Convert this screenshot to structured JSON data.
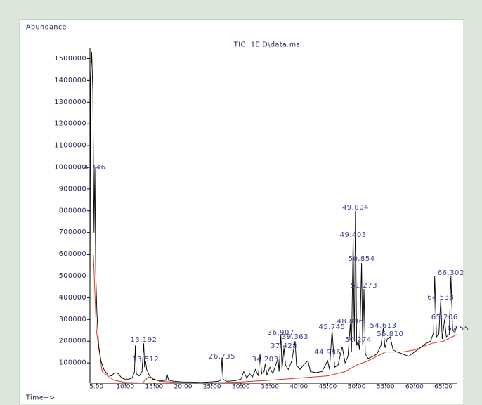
{
  "chart_data": {
    "type": "line",
    "title": "TIC: 1E.D\\data.ms",
    "ylabel": "Abundance",
    "xlabel": "Time-->",
    "xlim": [
      3.9,
      67.3
    ],
    "ylim": [
      0,
      1550000
    ],
    "xticks": [
      {
        "value": 5,
        "label": "5.00"
      },
      {
        "value": 10,
        "label": "10.00"
      },
      {
        "value": 15,
        "label": "15.00"
      },
      {
        "value": 20,
        "label": "20.00"
      },
      {
        "value": 25,
        "label": "25.00"
      },
      {
        "value": 30,
        "label": "30.00"
      },
      {
        "value": 35,
        "label": "35.00"
      },
      {
        "value": 40,
        "label": "40.00"
      },
      {
        "value": 45,
        "label": "45.00"
      },
      {
        "value": 50,
        "label": "50.00"
      },
      {
        "value": 55,
        "label": "55.00"
      },
      {
        "value": 60,
        "label": "60.00"
      },
      {
        "value": 65,
        "label": "65.00"
      }
    ],
    "yticks": [
      100000,
      200000,
      300000,
      400000,
      500000,
      600000,
      700000,
      800000,
      900000,
      1000000,
      1100000,
      1200000,
      1300000,
      1400000,
      1500000
    ],
    "series": [
      {
        "color": "#000000",
        "x": [
          3.9,
          4.0,
          4.2,
          4.4,
          4.6,
          4.75,
          4.9,
          5.1,
          5.4,
          5.8,
          6.3,
          7.0,
          7.6,
          8.2,
          8.8,
          9.4,
          10.0,
          10.6,
          11.2,
          11.6,
          11.75,
          11.9,
          12.4,
          12.9,
          13.19,
          13.35,
          13.51,
          13.7,
          14.2,
          14.8,
          15.5,
          16.4,
          17.0,
          17.2,
          17.5,
          18.5,
          20,
          21.5,
          23,
          24.5,
          26,
          26.5,
          26.73,
          26.9,
          27.5,
          29,
          30,
          30.5,
          31,
          31.5,
          32,
          32.5,
          33,
          33.3,
          33.6,
          34,
          34.2,
          34.5,
          35,
          35.5,
          36,
          36.4,
          36.6,
          36.9,
          37.1,
          37.43,
          37.7,
          38.2,
          38.8,
          39.36,
          39.6,
          40.2,
          40.8,
          41.6,
          42,
          43,
          44,
          44.99,
          45.3,
          45.75,
          46.2,
          46.8,
          47.5,
          48,
          48.5,
          48.9,
          49.1,
          49.4,
          49.6,
          49.8,
          50.0,
          50.27,
          50.5,
          50.85,
          51.05,
          51.27,
          51.5,
          52,
          52.8,
          53.5,
          54.2,
          54.61,
          54.9,
          55.3,
          55.81,
          56.3,
          57,
          58,
          59,
          60,
          61,
          62,
          62.8,
          63.3,
          63.5,
          63.8,
          64.2,
          64.54,
          64.8,
          65.21,
          65.5,
          66,
          66.3,
          66.6,
          67,
          67.3
        ],
        "values": [
          400000,
          1400000,
          1530000,
          1350000,
          700000,
          1000000,
          520000,
          330000,
          180000,
          110000,
          70000,
          45000,
          40000,
          55000,
          50000,
          30000,
          25000,
          25000,
          30000,
          60000,
          180000,
          50000,
          40000,
          60000,
          190000,
          80000,
          110000,
          70000,
          40000,
          25000,
          20000,
          18000,
          20000,
          50000,
          20000,
          15000,
          12000,
          12000,
          10000,
          12000,
          15000,
          20000,
          125000,
          25000,
          15000,
          18000,
          25000,
          60000,
          30000,
          50000,
          35000,
          70000,
          40000,
          140000,
          50000,
          60000,
          95000,
          45000,
          80000,
          50000,
          90000,
          120000,
          60000,
          230000,
          70000,
          170000,
          90000,
          70000,
          110000,
          200000,
          90000,
          70000,
          90000,
          110000,
          60000,
          55000,
          60000,
          110000,
          70000,
          250000,
          80000,
          90000,
          175000,
          100000,
          130000,
          280000,
          150000,
          680000,
          200000,
          800000,
          180000,
          200000,
          160000,
          560000,
          180000,
          440000,
          140000,
          120000,
          130000,
          140000,
          180000,
          260000,
          170000,
          210000,
          220000,
          160000,
          150000,
          140000,
          130000,
          150000,
          170000,
          190000,
          200000,
          240000,
          500000,
          220000,
          230000,
          390000,
          210000,
          300000,
          220000,
          230000,
          500000,
          250000,
          240000,
          270000
        ]
      },
      {
        "color": "#d03a20",
        "x": [
          4.5,
          5,
          6,
          8,
          10,
          13,
          14,
          16,
          20,
          25,
          30,
          35,
          40,
          45,
          48,
          50,
          52,
          55,
          58,
          60,
          63,
          65,
          67.3
        ],
        "values": [
          600000,
          250000,
          60000,
          20000,
          10000,
          8000,
          35000,
          15000,
          8000,
          8000,
          12000,
          20000,
          30000,
          40000,
          60000,
          90000,
          110000,
          150000,
          150000,
          160000,
          190000,
          200000,
          230000
        ]
      }
    ],
    "annotations": [
      {
        "label": "4.746",
        "x": 4.746,
        "y": 1000000
      },
      {
        "label": "13.192",
        "x": 13.192,
        "y": 207000
      },
      {
        "label": "13.512",
        "x": 13.512,
        "y": 116000
      },
      {
        "label": "26.735",
        "x": 26.735,
        "y": 129000
      },
      {
        "label": "34.203",
        "x": 34.203,
        "y": 116000
      },
      {
        "label": "36.907",
        "x": 36.907,
        "y": 239000
      },
      {
        "label": "37.428",
        "x": 37.428,
        "y": 178000
      },
      {
        "label": "39.363",
        "x": 39.363,
        "y": 220000
      },
      {
        "label": "44.986",
        "x": 44.986,
        "y": 149000
      },
      {
        "label": "45.745",
        "x": 45.745,
        "y": 265000
      },
      {
        "label": "48.896",
        "x": 48.896,
        "y": 291000
      },
      {
        "label": "49.804",
        "x": 49.804,
        "y": 815000
      },
      {
        "label": "49.403",
        "x": 49.403,
        "y": 689000
      },
      {
        "label": "50.854",
        "x": 50.854,
        "y": 579000
      },
      {
        "label": "51.273",
        "x": 51.273,
        "y": 456000
      },
      {
        "label": "50.274",
        "x": 50.274,
        "y": 207000
      },
      {
        "label": "54.613",
        "x": 54.613,
        "y": 272000
      },
      {
        "label": "55.810",
        "x": 55.81,
        "y": 233000
      },
      {
        "label": "64.538",
        "x": 64.538,
        "y": 401000
      },
      {
        "label": "65.206",
        "x": 65.206,
        "y": 310000
      },
      {
        "label": "66.302",
        "x": 66.302,
        "y": 514000
      },
      {
        "label": "67.55",
        "x": 67.55,
        "y": 259000
      }
    ]
  }
}
